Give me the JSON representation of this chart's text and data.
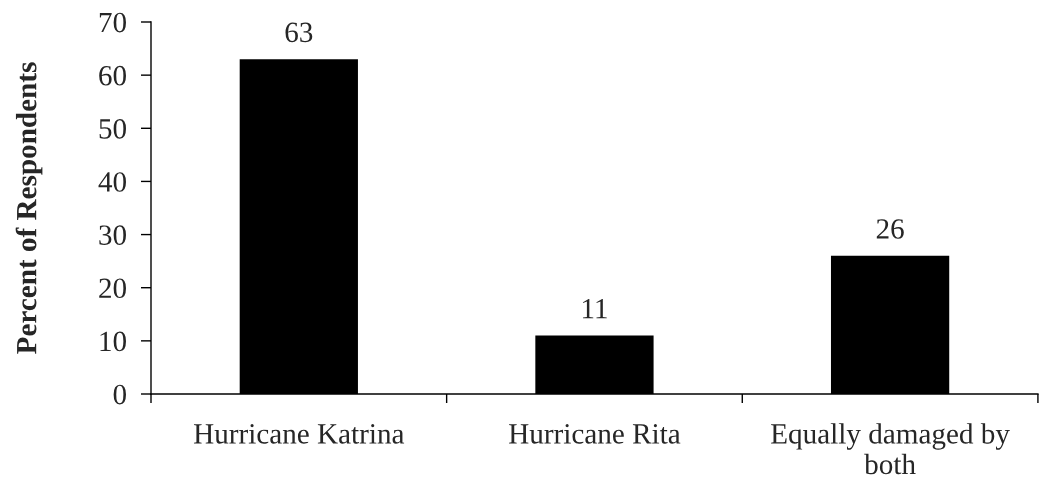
{
  "chart_data": {
    "type": "bar",
    "ylabel": "Percent of Respondents",
    "categories": [
      "Hurricane Katrina",
      "Hurricane Rita",
      "Equally damaged by both"
    ],
    "values": [
      63,
      11,
      26
    ],
    "color": "#000000",
    "ylim": [
      0,
      70
    ],
    "yticks": [
      0,
      10,
      20,
      30,
      40,
      50,
      60,
      70
    ],
    "grid": false,
    "data_labels": true
  }
}
